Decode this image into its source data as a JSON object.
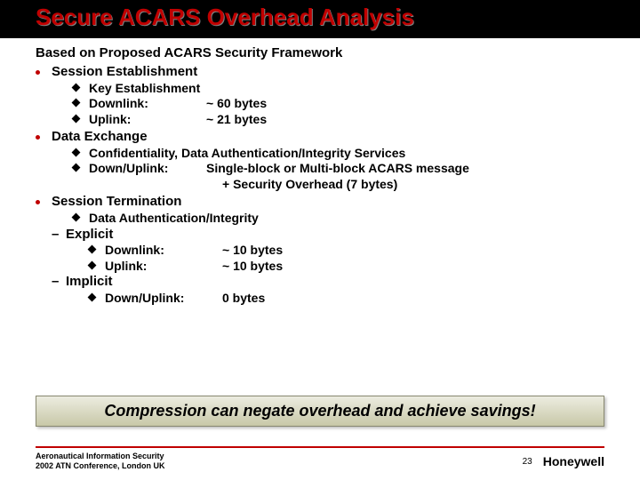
{
  "title": "Secure ACARS Overhead Analysis",
  "subtitle": "Based on Proposed ACARS Security Framework",
  "sections": {
    "session_establishment": {
      "heading": "Session Establishment",
      "items": {
        "key_establishment": "Key Establishment",
        "downlink_label": "Downlink:",
        "downlink_value": "~ 60 bytes",
        "uplink_label": "Uplink:",
        "uplink_value": "~ 21 bytes"
      }
    },
    "data_exchange": {
      "heading": "Data Exchange",
      "items": {
        "services": "Confidentiality, Data Authentication/Integrity Services",
        "downup_label": "Down/Uplink:",
        "downup_value": "Single-block or Multi-block ACARS message",
        "overhead": "+ Security Overhead (7 bytes)"
      }
    },
    "session_termination": {
      "heading": "Session Termination",
      "items": {
        "dai": "Data Authentication/Integrity"
      },
      "explicit": {
        "heading": "Explicit",
        "downlink_label": "Downlink:",
        "downlink_value": "~ 10 bytes",
        "uplink_label": "Uplink:",
        "uplink_value": "~ 10 bytes"
      },
      "implicit": {
        "heading": "Implicit",
        "downup_label": "Down/Uplink:",
        "downup_value": "0 bytes"
      }
    }
  },
  "callout": "Compression can negate overhead and achieve savings!",
  "footer": {
    "line1": "Aeronautical Information Security",
    "line2": "2002 ATN Conference, London UK",
    "brand": "Honeywell",
    "page": "23"
  },
  "colors": {
    "title_color": "#c00000",
    "title_bg": "#000000",
    "rule": "#c00000",
    "bullet1": "#c00000",
    "callout_top": "#ecece0",
    "callout_bottom": "#c8c8a8"
  }
}
